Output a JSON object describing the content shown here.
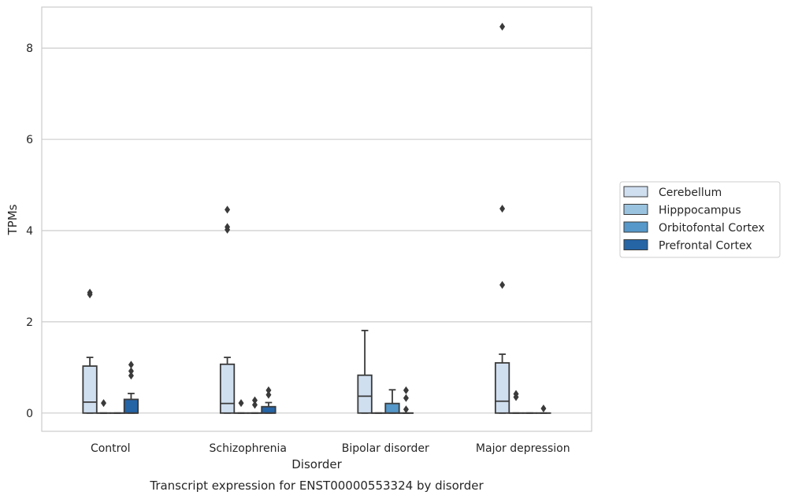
{
  "chart_data": {
    "type": "box",
    "title": "",
    "caption": "Transcript expression for ENST00000553324 by disorder",
    "xlabel": "Disorder",
    "ylabel": "TPMs",
    "ylim": [
      -0.4,
      8.9
    ],
    "yticks": [
      0,
      2,
      4,
      6,
      8
    ],
    "categories": [
      "Control",
      "Schizophrenia",
      "Bipolar disorder",
      "Major depression"
    ],
    "grid": "horizontal",
    "legend_position": "right",
    "series": [
      {
        "name": "Cerebellum",
        "color": "#d0dff0",
        "boxes": [
          {
            "q1": 0,
            "median": 0.24,
            "q3": 1.03,
            "whisker_low": 0,
            "whisker_high": 1.22,
            "outliers": [
              2.6,
              2.64
            ]
          },
          {
            "q1": 0,
            "median": 0.21,
            "q3": 1.07,
            "whisker_low": 0,
            "whisker_high": 1.22,
            "outliers": [
              4.02,
              4.08,
              4.46
            ]
          },
          {
            "q1": 0,
            "median": 0.37,
            "q3": 0.83,
            "whisker_low": 0,
            "whisker_high": 1.81,
            "outliers": []
          },
          {
            "q1": 0,
            "median": 0.26,
            "q3": 1.1,
            "whisker_low": 0,
            "whisker_high": 1.29,
            "outliers": [
              2.81,
              4.48,
              8.47
            ]
          }
        ]
      },
      {
        "name": "Hipppocampus",
        "color": "#9ac3df",
        "boxes": [
          {
            "q1": 0,
            "median": 0,
            "q3": 0,
            "whisker_low": 0,
            "whisker_high": 0,
            "outliers": [
              0.22
            ]
          },
          {
            "q1": 0,
            "median": 0,
            "q3": 0,
            "whisker_low": 0,
            "whisker_high": 0,
            "outliers": [
              0.22
            ]
          },
          {
            "q1": 0,
            "median": 0,
            "q3": 0,
            "whisker_low": 0,
            "whisker_high": 0,
            "outliers": []
          },
          {
            "q1": 0,
            "median": 0,
            "q3": 0,
            "whisker_low": 0,
            "whisker_high": 0,
            "outliers": [
              0.35,
              0.42
            ]
          }
        ]
      },
      {
        "name": "Orbitofontal Cortex",
        "color": "#5598c9",
        "boxes": [
          {
            "q1": 0,
            "median": 0,
            "q3": 0,
            "whisker_low": 0,
            "whisker_high": 0,
            "outliers": []
          },
          {
            "q1": 0,
            "median": 0,
            "q3": 0,
            "whisker_low": 0,
            "whisker_high": 0,
            "outliers": [
              0.18,
              0.28
            ]
          },
          {
            "q1": 0,
            "median": 0,
            "q3": 0.21,
            "whisker_low": 0,
            "whisker_high": 0.51,
            "outliers": []
          },
          {
            "q1": 0,
            "median": 0,
            "q3": 0,
            "whisker_low": 0,
            "whisker_high": 0,
            "outliers": []
          }
        ]
      },
      {
        "name": "Prefrontal Cortex",
        "color": "#2565a6",
        "boxes": [
          {
            "q1": 0,
            "median": 0,
            "q3": 0.3,
            "whisker_low": 0,
            "whisker_high": 0.43,
            "outliers": [
              0.82,
              0.92,
              1.06
            ]
          },
          {
            "q1": 0,
            "median": 0,
            "q3": 0.14,
            "whisker_low": 0,
            "whisker_high": 0.23,
            "outliers": [
              0.4,
              0.5
            ]
          },
          {
            "q1": 0,
            "median": 0,
            "q3": 0,
            "whisker_low": 0,
            "whisker_high": 0,
            "outliers": [
              0.08,
              0.33,
              0.5
            ]
          },
          {
            "q1": 0,
            "median": 0,
            "q3": 0,
            "whisker_low": 0,
            "whisker_high": 0,
            "outliers": [
              0.1
            ]
          }
        ]
      }
    ]
  }
}
